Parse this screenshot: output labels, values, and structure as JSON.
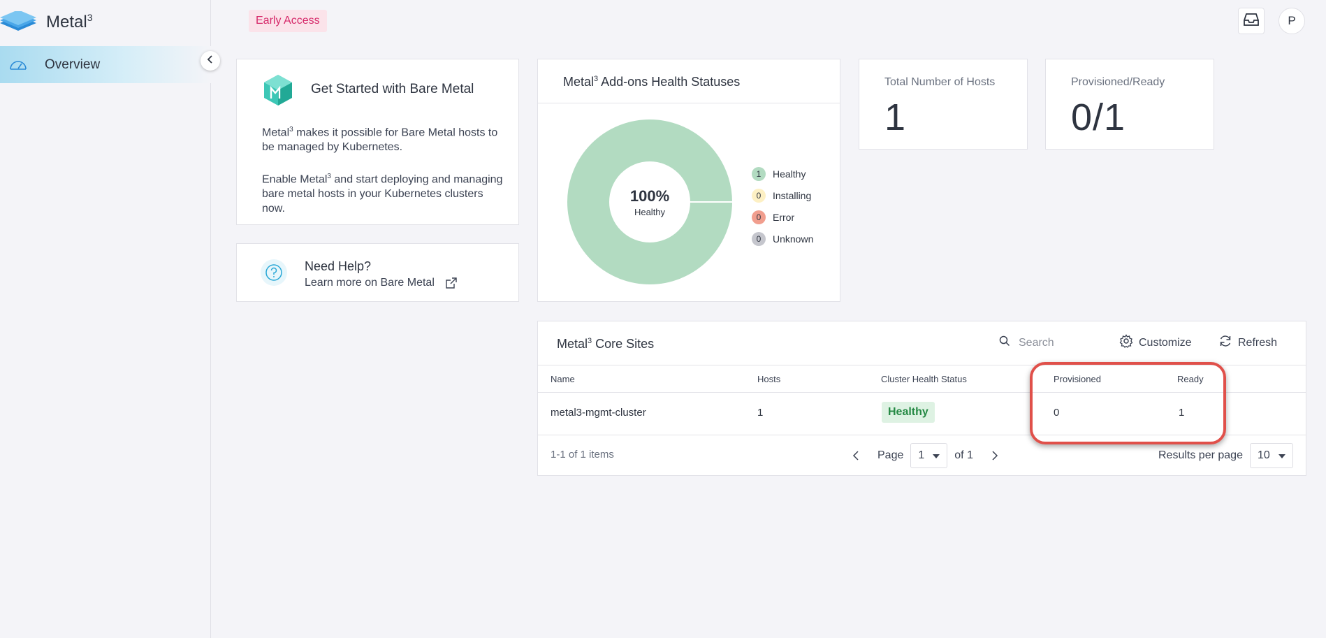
{
  "app": {
    "title": "Metal",
    "title_sup": "3"
  },
  "sidebar": {
    "items": [
      {
        "label": "Overview",
        "icon": "dashboard-gauge-icon",
        "active": true
      }
    ]
  },
  "header": {
    "badge": "Early Access",
    "avatar_initial": "P"
  },
  "get_started": {
    "title": "Get Started with Bare Metal",
    "p1_pre": "Metal",
    "p1_sup": "3",
    "p1_post": " makes it possible for Bare Metal hosts to be managed by Kubernetes.",
    "p2_pre": "Enable Metal",
    "p2_sup": "3",
    "p2_post": " and start deploying and managing bare metal hosts in your Kubernetes clusters now."
  },
  "help": {
    "title": "Need Help?",
    "link": "Learn more on Bare Metal"
  },
  "health": {
    "title_pre": "Metal",
    "title_sup": "3",
    "title_post": " Add-ons Health Statuses",
    "center_value": "100%",
    "center_label": "Healthy",
    "colors": {
      "healthy": "#b2dbc1",
      "installing": "#fdf0c4",
      "error": "#f19e8e",
      "unknown": "#c5c6cd"
    }
  },
  "chart_data": {
    "type": "pie",
    "categories": [
      "Healthy",
      "Installing",
      "Error",
      "Unknown"
    ],
    "values": [
      1,
      0,
      0,
      0
    ]
  },
  "stats": {
    "total_hosts": {
      "label": "Total Number of Hosts",
      "value": "1"
    },
    "provisioned_ready": {
      "label": "Provisioned/Ready",
      "value": "0/1"
    }
  },
  "sites": {
    "title_pre": "Metal",
    "title_sup": "3",
    "title_post": " Core Sites",
    "search_placeholder": "Search",
    "customize_label": "Customize",
    "refresh_label": "Refresh",
    "columns": [
      "Name",
      "Hosts",
      "Cluster Health Status",
      "Provisioned",
      "Ready"
    ],
    "rows": [
      {
        "name": "metal3-mgmt-cluster",
        "hosts": "1",
        "health": "Healthy",
        "provisioned": "0",
        "ready": "1"
      }
    ],
    "items_count": "1-1 of 1 items",
    "page_label": "Page",
    "page_value": "1",
    "page_of": "of 1",
    "rpp_label": "Results per page",
    "rpp_value": "10"
  }
}
